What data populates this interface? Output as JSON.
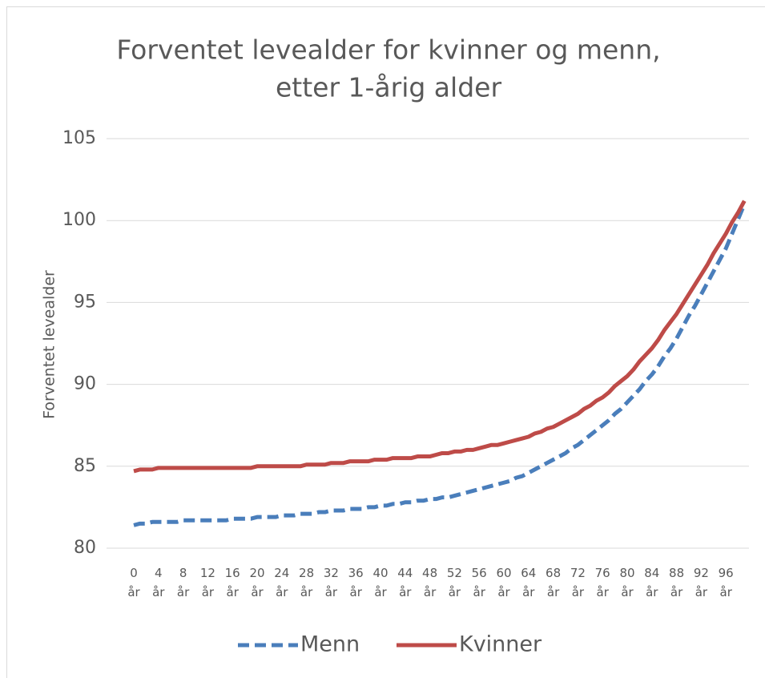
{
  "chart_data": {
    "type": "line",
    "title": [
      "Forventet levealder for kvinner og menn,",
      "etter 1-årig alder"
    ],
    "y_label": "Forventet levealder",
    "categories": [
      "0 år",
      null,
      null,
      null,
      "4 år",
      null,
      null,
      null,
      "8 år",
      null,
      null,
      null,
      "12 år",
      null,
      null,
      null,
      "16 år",
      null,
      null,
      null,
      "20 år",
      null,
      null,
      null,
      "24 år",
      null,
      null,
      null,
      "28 år",
      null,
      null,
      null,
      "32 år",
      null,
      null,
      null,
      "36 år",
      null,
      null,
      null,
      "40 år",
      null,
      null,
      null,
      "44 år",
      null,
      null,
      null,
      "48 år",
      null,
      null,
      null,
      "52 år",
      null,
      null,
      null,
      "56 år",
      null,
      null,
      null,
      "60 år",
      null,
      null,
      null,
      "64 år",
      null,
      null,
      null,
      "68 år",
      null,
      null,
      null,
      "72 år",
      null,
      null,
      null,
      "76 år",
      null,
      null,
      null,
      "80 år",
      null,
      null,
      null,
      "84 år",
      null,
      null,
      null,
      "88 år",
      null,
      null,
      null,
      "92 år",
      null,
      null,
      null,
      "96 år",
      null,
      null,
      null
    ],
    "series": [
      {
        "name": "Menn",
        "color": "#4a7ebb",
        "dash": true,
        "values": [
          81.4,
          81.5,
          81.5,
          81.6,
          81.6,
          81.6,
          81.6,
          81.6,
          81.7,
          81.7,
          81.7,
          81.7,
          81.7,
          81.7,
          81.7,
          81.7,
          81.8,
          81.8,
          81.8,
          81.8,
          81.9,
          81.9,
          81.9,
          81.9,
          82.0,
          82.0,
          82.0,
          82.1,
          82.1,
          82.1,
          82.2,
          82.2,
          82.3,
          82.3,
          82.3,
          82.4,
          82.4,
          82.4,
          82.5,
          82.5,
          82.6,
          82.6,
          82.7,
          82.7,
          82.8,
          82.8,
          82.9,
          82.9,
          83.0,
          83.0,
          83.1,
          83.1,
          83.2,
          83.3,
          83.4,
          83.5,
          83.6,
          83.7,
          83.8,
          83.9,
          84.0,
          84.1,
          84.3,
          84.4,
          84.6,
          84.8,
          85.0,
          85.2,
          85.4,
          85.6,
          85.8,
          86.1,
          86.3,
          86.6,
          86.9,
          87.2,
          87.5,
          87.8,
          88.2,
          88.5,
          88.9,
          89.3,
          89.7,
          90.2,
          90.6,
          91.1,
          91.7,
          92.2,
          92.8,
          93.5,
          94.2,
          94.8,
          95.5,
          96.2,
          96.9,
          97.6,
          98.3,
          99.2,
          100.1,
          101.0
        ]
      },
      {
        "name": "Kvinner",
        "color": "#be4b48",
        "dash": false,
        "values": [
          84.7,
          84.8,
          84.8,
          84.8,
          84.9,
          84.9,
          84.9,
          84.9,
          84.9,
          84.9,
          84.9,
          84.9,
          84.9,
          84.9,
          84.9,
          84.9,
          84.9,
          84.9,
          84.9,
          84.9,
          85.0,
          85.0,
          85.0,
          85.0,
          85.0,
          85.0,
          85.0,
          85.0,
          85.1,
          85.1,
          85.1,
          85.1,
          85.2,
          85.2,
          85.2,
          85.3,
          85.3,
          85.3,
          85.3,
          85.4,
          85.4,
          85.4,
          85.5,
          85.5,
          85.5,
          85.5,
          85.6,
          85.6,
          85.6,
          85.7,
          85.8,
          85.8,
          85.9,
          85.9,
          86.0,
          86.0,
          86.1,
          86.2,
          86.3,
          86.3,
          86.4,
          86.5,
          86.6,
          86.7,
          86.8,
          87.0,
          87.1,
          87.3,
          87.4,
          87.6,
          87.8,
          88.0,
          88.2,
          88.5,
          88.7,
          89.0,
          89.2,
          89.5,
          89.9,
          90.2,
          90.5,
          90.9,
          91.4,
          91.8,
          92.2,
          92.7,
          93.3,
          93.8,
          94.3,
          94.9,
          95.5,
          96.1,
          96.7,
          97.3,
          98.0,
          98.6,
          99.2,
          99.9,
          100.5,
          101.2
        ]
      }
    ],
    "ylim": [
      80,
      105
    ],
    "yticks": [
      80,
      85,
      90,
      95,
      100,
      105
    ],
    "grid": true,
    "legend": "bottom"
  }
}
